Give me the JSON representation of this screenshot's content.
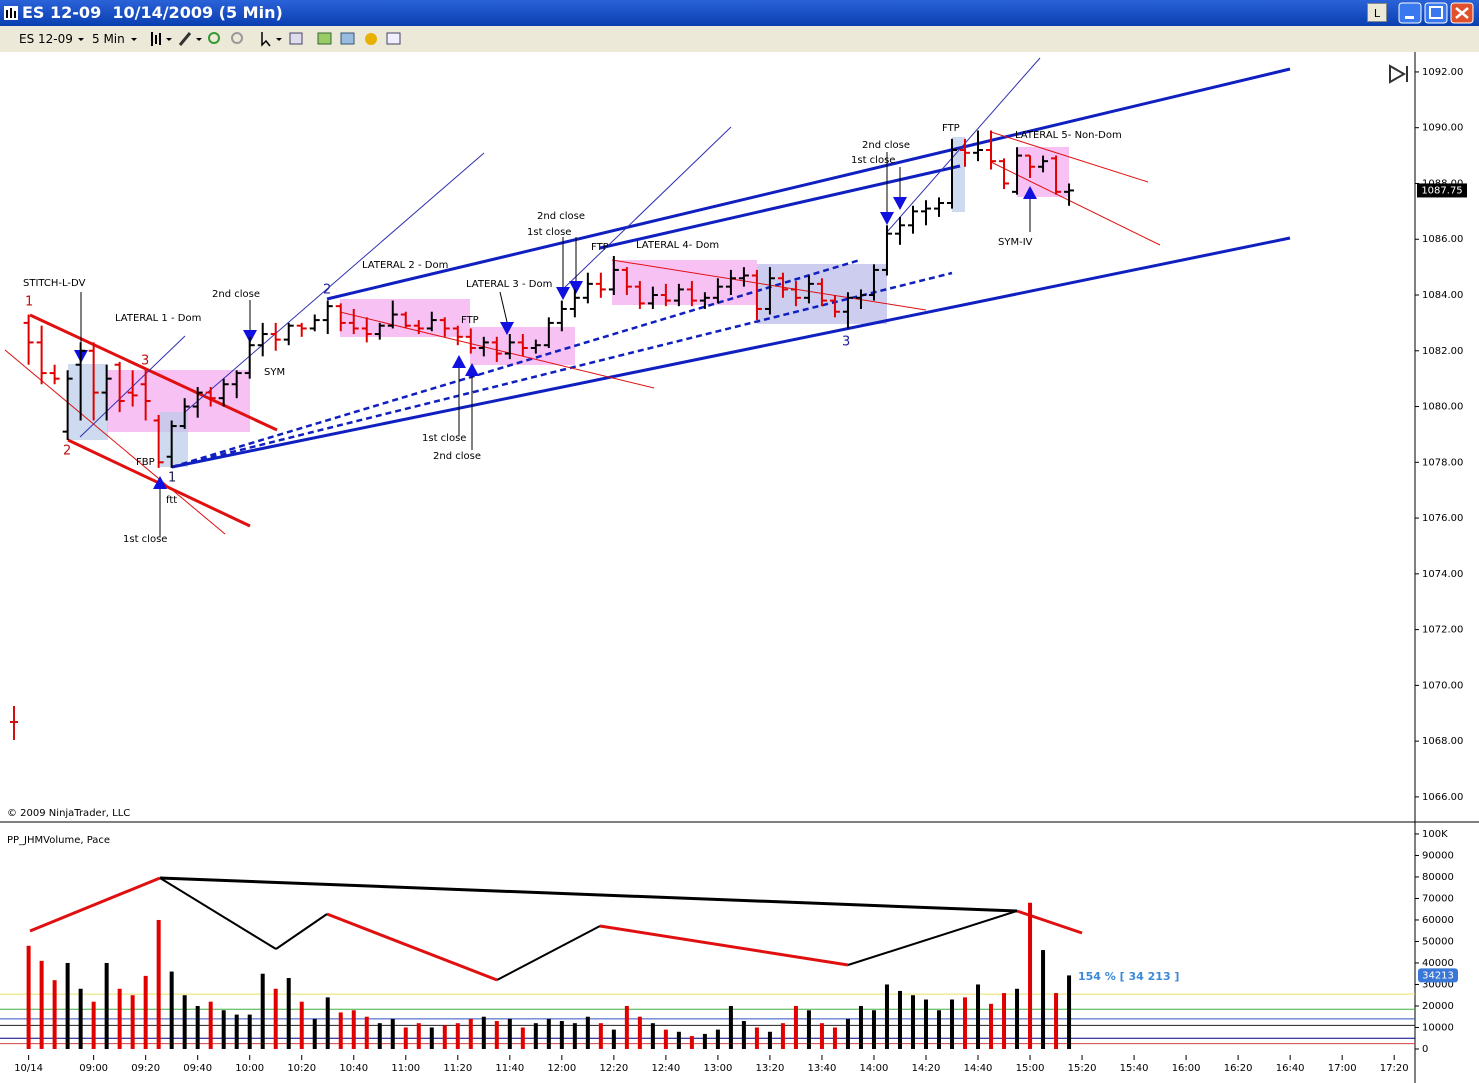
{
  "window": {
    "title": "ES 12-09  10/14/2009 (5 Min)",
    "button": "L"
  },
  "toolbar": {
    "instrument": "ES 12-09",
    "interval": "5 Min"
  },
  "chart_data": [
    {
      "type": "ohlc",
      "x": [
        "08:35",
        "08:40",
        "08:45",
        "08:50",
        "08:55",
        "09:00",
        "09:05",
        "09:10",
        "09:15",
        "09:20",
        "09:25",
        "09:30",
        "09:35",
        "09:40",
        "09:45",
        "09:50",
        "09:55",
        "10:00",
        "10:05",
        "10:10",
        "10:15",
        "10:20",
        "10:25",
        "10:30",
        "10:35",
        "10:40",
        "10:45",
        "10:50",
        "10:55",
        "11:00",
        "11:05",
        "11:10",
        "11:15",
        "11:20",
        "11:25",
        "11:30",
        "11:35",
        "11:40",
        "11:45",
        "11:50",
        "11:55",
        "12:00",
        "12:05",
        "12:10",
        "12:15",
        "12:20",
        "12:25",
        "12:30",
        "12:35",
        "12:40",
        "12:45",
        "12:50",
        "12:55",
        "13:00",
        "13:05",
        "13:10",
        "13:15",
        "13:20",
        "13:25",
        "13:30",
        "13:35",
        "13:40",
        "13:45",
        "13:50",
        "13:55",
        "14:00",
        "14:05",
        "14:10",
        "14:15",
        "14:20",
        "14:25",
        "14:30",
        "14:35",
        "14:40",
        "14:45",
        "14:50",
        "14:55",
        "15:00",
        "15:05",
        "15:10",
        "15:15"
      ],
      "open": [
        1083.0,
        1082.3,
        1081.2,
        1079.1,
        1081.5,
        1082.0,
        1080.5,
        1081.5,
        1080.5,
        1080.8,
        1079.5,
        1078.2,
        1079.3,
        1080.0,
        1080.5,
        1080.3,
        1080.8,
        1081.2,
        1082.2,
        1082.6,
        1082.4,
        1082.9,
        1082.8,
        1083.1,
        1083.6,
        1083.0,
        1082.8,
        1082.6,
        1082.9,
        1083.3,
        1082.9,
        1082.8,
        1083.1,
        1082.8,
        1082.5,
        1082.1,
        1082.3,
        1081.9,
        1082.3,
        1082.1,
        1082.2,
        1083.0,
        1083.5,
        1083.9,
        1084.4,
        1084.2,
        1084.9,
        1084.3,
        1083.7,
        1084.0,
        1083.8,
        1084.2,
        1083.8,
        1083.9,
        1084.3,
        1084.6,
        1084.7,
        1083.5,
        1084.6,
        1084.2,
        1083.9,
        1084.4,
        1083.8,
        1083.4,
        1083.9,
        1084.0,
        1084.9,
        1086.2,
        1086.5,
        1087.0,
        1087.1,
        1087.3,
        1089.2,
        1089.1,
        1089.2,
        1088.8,
        1087.7,
        1089.0,
        1088.6,
        1088.9,
        1087.7
      ],
      "high": [
        1083.3,
        1082.9,
        1081.5,
        1081.3,
        1082.3,
        1082.3,
        1081.5,
        1081.6,
        1081.3,
        1081.3,
        1079.7,
        1079.5,
        1080.3,
        1080.7,
        1080.7,
        1081.0,
        1081.3,
        1082.5,
        1083.0,
        1083.0,
        1083.0,
        1083.0,
        1083.3,
        1083.8,
        1083.7,
        1083.5,
        1083.2,
        1083.0,
        1083.8,
        1083.4,
        1083.1,
        1083.4,
        1083.2,
        1082.9,
        1082.8,
        1082.5,
        1082.5,
        1082.6,
        1082.6,
        1082.4,
        1083.2,
        1083.8,
        1084.2,
        1084.8,
        1084.8,
        1085.4,
        1085.0,
        1084.5,
        1084.3,
        1084.4,
        1084.4,
        1084.5,
        1084.1,
        1084.6,
        1084.9,
        1085.0,
        1084.9,
        1085.0,
        1084.8,
        1084.5,
        1084.7,
        1084.6,
        1084.0,
        1084.1,
        1084.2,
        1085.1,
        1086.5,
        1086.8,
        1087.2,
        1087.4,
        1087.5,
        1089.6,
        1089.6,
        1089.9,
        1089.9,
        1088.9,
        1089.3,
        1089.0,
        1089.0,
        1089.0,
        1088.0
      ],
      "low": [
        1081.5,
        1080.8,
        1080.8,
        1078.8,
        1079.5,
        1079.5,
        1079.5,
        1079.8,
        1080.0,
        1079.5,
        1077.8,
        1077.8,
        1079.2,
        1079.6,
        1080.0,
        1080.0,
        1080.3,
        1081.0,
        1081.8,
        1082.0,
        1082.2,
        1082.5,
        1082.7,
        1082.6,
        1082.7,
        1082.6,
        1082.3,
        1082.4,
        1082.8,
        1082.8,
        1082.6,
        1082.7,
        1082.5,
        1082.2,
        1081.9,
        1081.8,
        1081.6,
        1081.7,
        1081.8,
        1081.9,
        1082.1,
        1082.7,
        1083.2,
        1083.7,
        1083.9,
        1084.0,
        1084.0,
        1083.5,
        1083.5,
        1083.6,
        1083.6,
        1083.6,
        1083.5,
        1083.7,
        1084.0,
        1084.3,
        1083.1,
        1083.3,
        1083.9,
        1083.6,
        1083.7,
        1083.6,
        1083.2,
        1082.8,
        1083.5,
        1083.8,
        1084.7,
        1085.8,
        1086.2,
        1086.5,
        1086.8,
        1087.1,
        1088.6,
        1088.8,
        1088.5,
        1087.8,
        1087.6,
        1088.2,
        1088.4,
        1087.6,
        1087.2
      ],
      "close": [
        1082.3,
        1081.2,
        1081.0,
        1081.0,
        1082.0,
        1080.5,
        1081.0,
        1080.2,
        1080.4,
        1080.2,
        1078.0,
        1079.3,
        1080.0,
        1080.5,
        1080.3,
        1080.8,
        1081.2,
        1082.2,
        1082.6,
        1082.4,
        1082.9,
        1082.8,
        1083.1,
        1083.6,
        1083.0,
        1082.8,
        1082.6,
        1082.9,
        1083.3,
        1082.9,
        1082.8,
        1083.1,
        1082.8,
        1082.5,
        1082.1,
        1082.3,
        1081.9,
        1082.3,
        1082.1,
        1082.2,
        1083.0,
        1083.5,
        1083.9,
        1084.4,
        1084.2,
        1084.9,
        1084.3,
        1083.7,
        1084.0,
        1083.8,
        1084.2,
        1083.8,
        1083.9,
        1084.3,
        1084.6,
        1084.7,
        1083.5,
        1084.6,
        1084.2,
        1083.9,
        1084.4,
        1083.8,
        1083.4,
        1083.9,
        1084.0,
        1084.9,
        1086.2,
        1086.5,
        1087.0,
        1087.1,
        1087.3,
        1089.2,
        1089.1,
        1089.2,
        1088.8,
        1088.0,
        1089.0,
        1088.6,
        1088.8,
        1087.7,
        1087.75
      ],
      "up_color": "#000000",
      "down_color": "#e00000",
      "xlim": [
        "08:24",
        "17:28"
      ],
      "xticks": [
        {
          "value": "08:35",
          "label": "10/14"
        },
        "09:00",
        "09:20",
        "09:40",
        "10:00",
        "10:20",
        "10:40",
        "11:00",
        "11:20",
        "11:40",
        "12:00",
        "12:20",
        "12:40",
        "13:00",
        "13:20",
        "13:40",
        "14:00",
        "14:20",
        "14:40",
        "15:00",
        "15:20",
        "15:40",
        "16:00",
        "16:20",
        "16:40",
        "17:00",
        "17:20"
      ],
      "ylim": [
        1065.1,
        1092.5
      ],
      "yticks": [
        {
          "value": 1066,
          "label": "1066.00"
        },
        {
          "value": 1068,
          "label": "1068.00"
        },
        {
          "value": 1070,
          "label": "1070.00"
        },
        {
          "value": 1072,
          "label": "1072.00"
        },
        {
          "value": 1074,
          "label": "1074.00"
        },
        {
          "value": 1076,
          "label": "1076.00"
        },
        {
          "value": 1078,
          "label": "1078.00"
        },
        {
          "value": 1080,
          "label": "1080.00"
        },
        {
          "value": 1082,
          "label": "1082.00"
        },
        {
          "value": 1084,
          "label": "1084.00"
        },
        {
          "value": 1086,
          "label": "1086.00"
        },
        {
          "value": 1088,
          "label": "1088.00"
        },
        {
          "value": 1090,
          "label": "1090.00"
        },
        {
          "value": 1092,
          "label": "1092.00"
        }
      ],
      "grid": true,
      "annotations": [
        "STITCH-L-DV",
        "LATERAL 1 - Dom",
        "2nd close",
        "SYM",
        "FBP",
        "ftt",
        "1st close",
        "LATERAL 2 - Dom",
        "LATERAL 3 - Dom",
        "FTP",
        "1st close",
        "2nd close",
        "2nd close",
        "1st close",
        "FTP",
        "LATERAL 4- Dom",
        "2nd close",
        "1st close",
        "FTP",
        "LATERAL 5- Non-Dom",
        "SYM-IV",
        "1",
        "2",
        "3",
        "1",
        "2",
        "3",
        "© 2009 NinjaTrader, LLC"
      ]
    },
    {
      "type": "bar",
      "title": "PP_JHMVolume, Pace",
      "values": [
        48000,
        41000,
        32000,
        40000,
        28000,
        22000,
        40000,
        28000,
        25000,
        34000,
        60000,
        36000,
        25000,
        20000,
        22000,
        18000,
        16000,
        16000,
        35000,
        28000,
        33000,
        22000,
        14000,
        24000,
        17000,
        18000,
        15000,
        12000,
        14000,
        10000,
        12000,
        10000,
        11000,
        12000,
        14000,
        15000,
        13000,
        14000,
        10000,
        12000,
        14000,
        13000,
        12000,
        15000,
        12000,
        9000,
        20000,
        15000,
        12000,
        9000,
        8000,
        6000,
        7000,
        9000,
        20000,
        13000,
        10000,
        8000,
        12000,
        20000,
        18000,
        12000,
        10000,
        14000,
        20000,
        18000,
        30000,
        27000,
        25000,
        23000,
        18000,
        23000,
        24000,
        30000,
        21000,
        26000,
        28000,
        68000,
        46000,
        26000,
        34213
      ],
      "pace_label": "154 % [ 34 213 ]",
      "ylim": [
        -2800,
        103700
      ],
      "yticks": [
        0,
        10000,
        20000,
        30000,
        40000,
        50000,
        60000,
        70000,
        80000,
        90000,
        {
          "value": 100000,
          "label": "100K"
        }
      ],
      "levels": [
        {
          "value": 25500,
          "color": "#e8e060"
        },
        {
          "value": 18500,
          "color": "#40b040"
        },
        {
          "value": 14000,
          "color": "#3050c0"
        },
        {
          "value": 11000,
          "color": "#202020"
        },
        {
          "value": 5000,
          "color": "#000080"
        },
        {
          "value": 2500,
          "color": "#d04040"
        }
      ]
    }
  ]
}
